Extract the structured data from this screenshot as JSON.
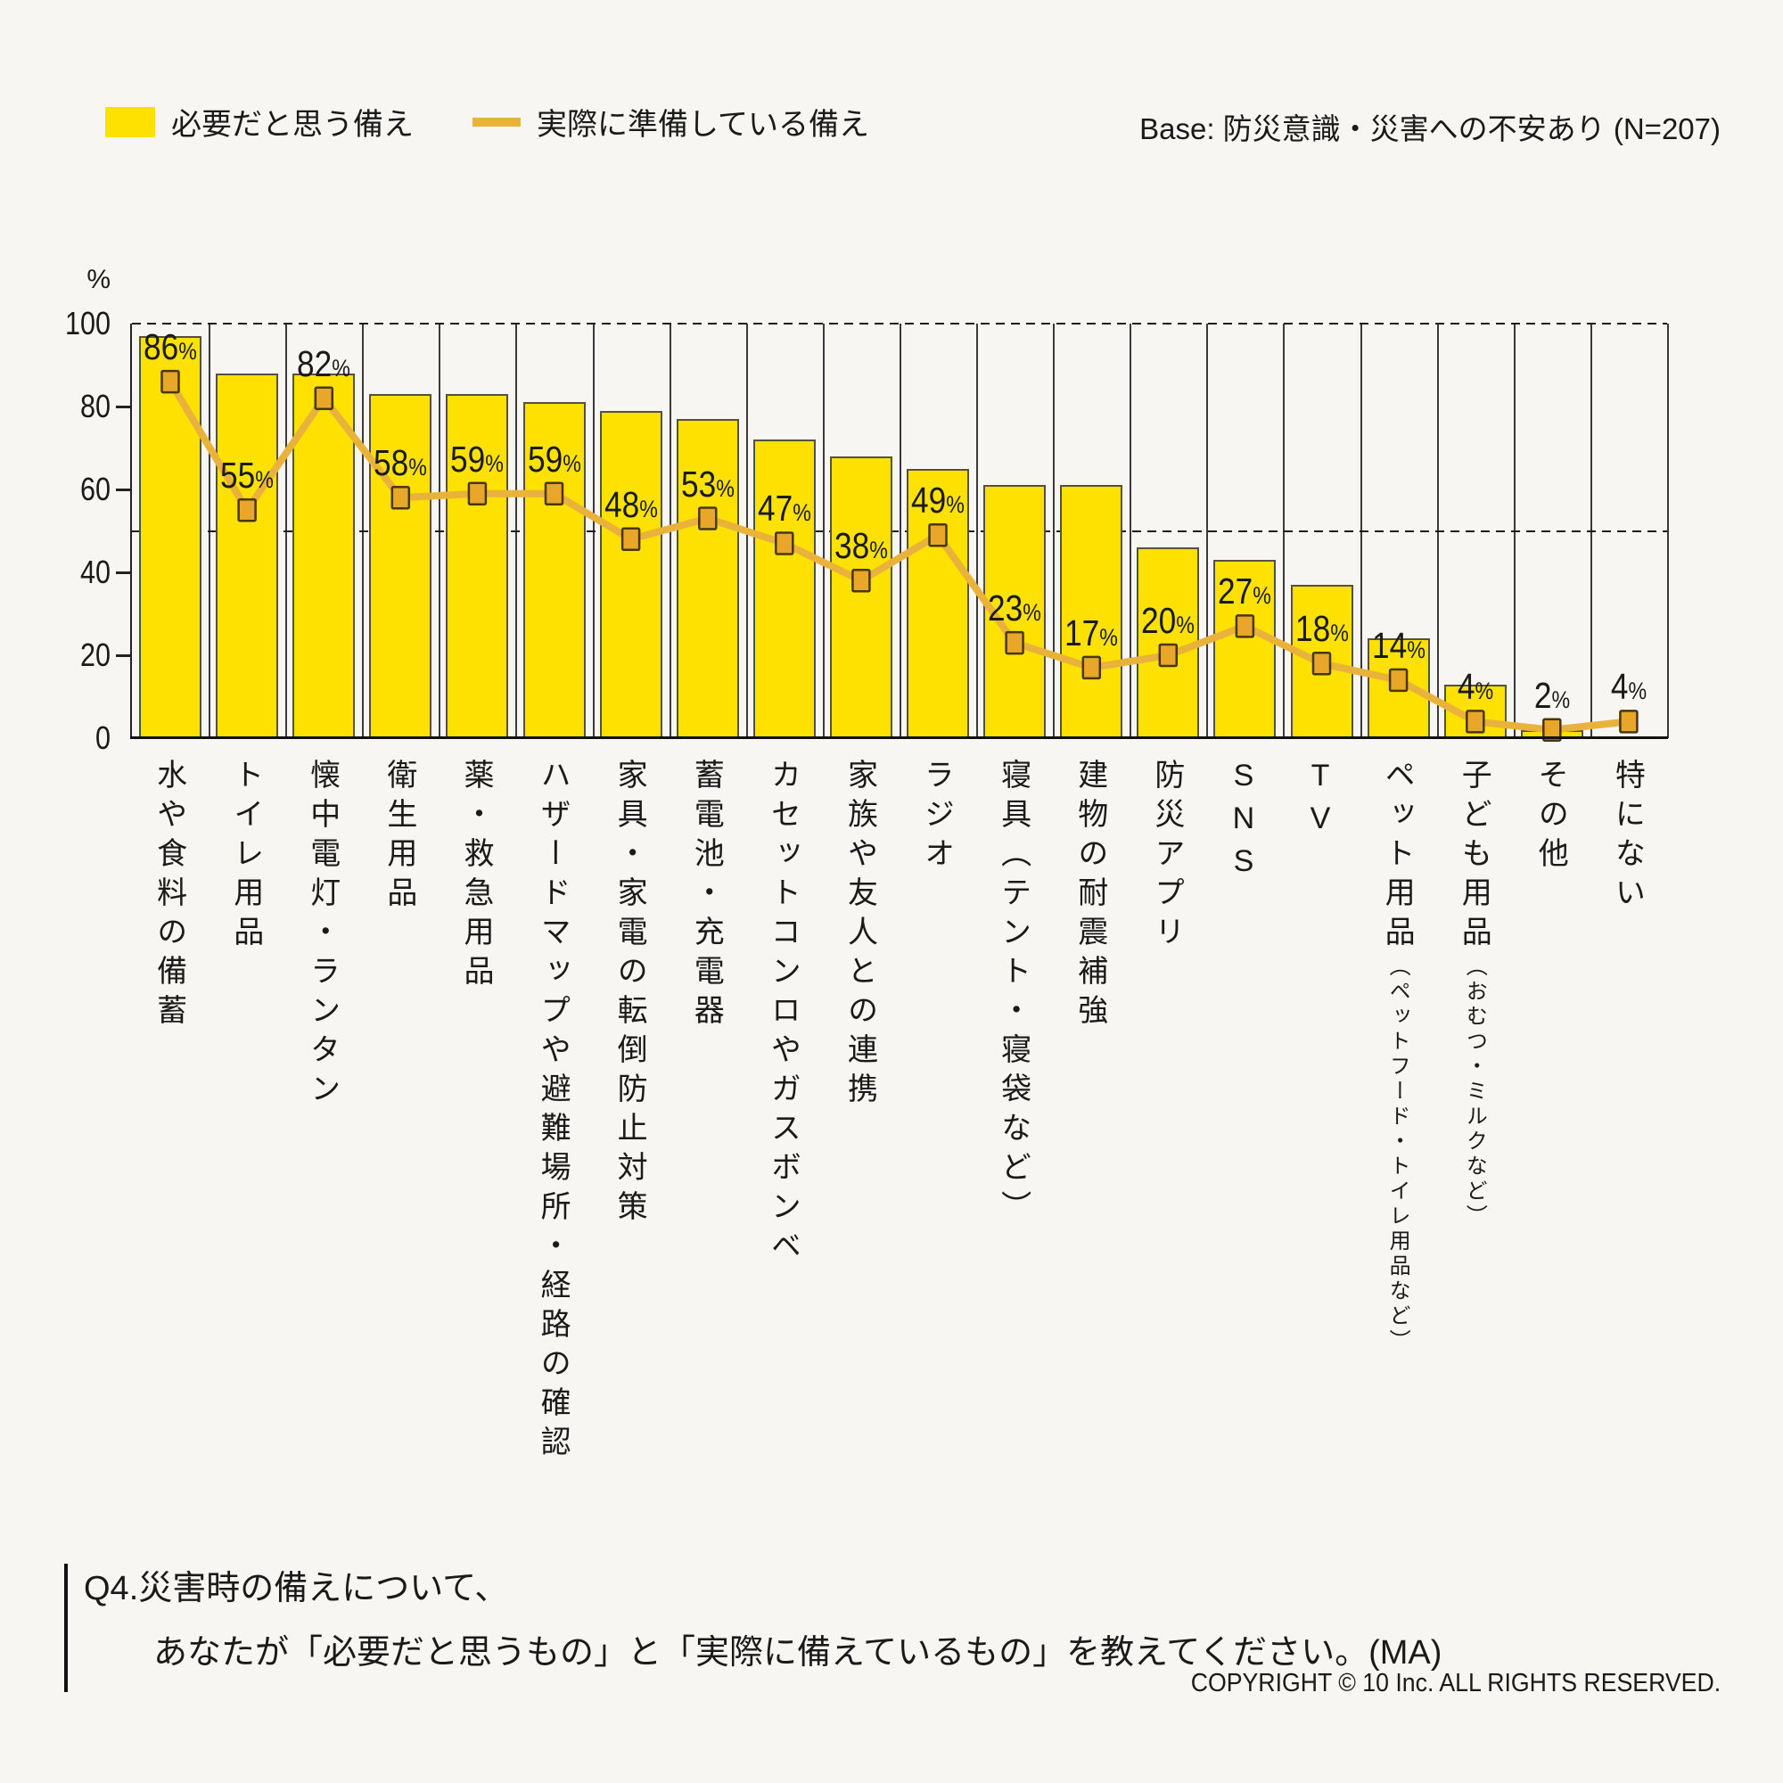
{
  "page": {
    "background": "#f7f6f2"
  },
  "legend": {
    "bar_label": "必要だと思う備え",
    "line_label": "実際に準備している備え"
  },
  "base_note": "Base: 防災意識・災害への不安あり (N=207)",
  "chart_data": {
    "type": "bar",
    "title": "",
    "unit": "%",
    "ylim": [
      0,
      100
    ],
    "yticks": [
      0,
      20,
      40,
      60,
      80,
      100
    ],
    "dashed_gridlines": [
      50,
      100
    ],
    "grid": "vertical-category-separators",
    "legend_position": "top-left",
    "colors": {
      "bar": "#ffe100",
      "bar_border": "#57513c",
      "line": "#e9b23a",
      "marker": "#e8a62a",
      "marker_border": "#47370a"
    },
    "categories": [
      "水や食料の備蓄",
      "トイレ用品",
      "懐中電灯・ランタン",
      "衛生用品",
      "薬・救急用品",
      "ハザードマップや避難場所・経路の確認",
      "家具・家電の転倒防止対策",
      "蓄電池・充電器",
      "カセットコンロやガスボンベ",
      "家族や友人との連携",
      "ラジオ",
      "寝具（テント・寝袋など）",
      "建物の耐震補強",
      "防災アプリ",
      "SNS",
      "TV",
      "ペット用品",
      "子ども用品",
      "その他",
      "特にない"
    ],
    "category_notes": [
      "",
      "",
      "",
      "",
      "",
      "",
      "",
      "",
      "",
      "",
      "",
      "",
      "",
      "",
      "",
      "",
      "（ペットフード・トイレ用品など）",
      "（おむつ・ミルクなど）",
      "",
      ""
    ],
    "series": [
      {
        "name": "必要だと思う備え",
        "type": "bar",
        "values": [
          97,
          88,
          88,
          83,
          83,
          81,
          79,
          77,
          72,
          68,
          65,
          61,
          61,
          46,
          43,
          37,
          24,
          13,
          2,
          0
        ]
      },
      {
        "name": "実際に準備している備え",
        "type": "line",
        "marker": "square",
        "data_labels": "shown",
        "values": [
          86,
          55,
          82,
          58,
          59,
          59,
          48,
          53,
          47,
          38,
          49,
          23,
          17,
          20,
          27,
          18,
          14,
          4,
          2,
          4
        ]
      }
    ]
  },
  "footer": {
    "question_line1": "Q4.災害時の備えについて、",
    "question_line2": "あなたが「必要だと思うもの」と「実際に備えているもの」を教えてください。(MA)",
    "copyright": "COPYRIGHT © 10 Inc. ALL RIGHTS RESERVED."
  }
}
